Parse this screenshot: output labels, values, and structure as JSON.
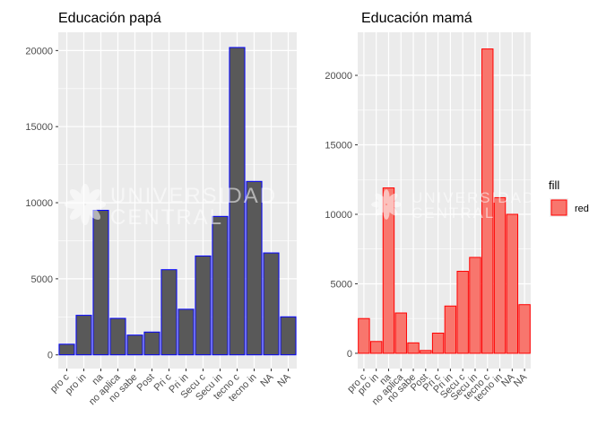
{
  "chart_data": [
    {
      "type": "bar",
      "title": "Educación papá",
      "categories": [
        "pro c",
        "pro in",
        "na",
        "no aplica",
        "no sabe",
        "Post",
        "Pri c",
        "Pri in",
        "Secu c",
        "Secu in",
        "tecno c",
        "tecno in",
        "NA",
        "NA"
      ],
      "values": [
        700,
        2600,
        9500,
        2400,
        1300,
        1500,
        5600,
        3000,
        6500,
        9100,
        20200,
        11400,
        6700,
        2500
      ],
      "ylim": [
        -900,
        21200
      ],
      "yticks": [
        0,
        5000,
        10000,
        15000,
        20000
      ],
      "yticklabels": [
        "0",
        "5000",
        "10000",
        "15000",
        "20000"
      ],
      "fill_color": "#595959",
      "stroke_color": "#0000ff",
      "panel_bg": "#ebebeb",
      "grid": true
    },
    {
      "type": "bar",
      "title": "Educación mamá",
      "categories": [
        "pro c",
        "pro in",
        "na",
        "no aplica",
        "no sabe",
        "Post",
        "Pri c",
        "Pri in",
        "Secu c",
        "Secu in",
        "tecno c",
        "tecno in",
        "NA",
        "NA"
      ],
      "values": [
        2500,
        850,
        11900,
        2900,
        750,
        200,
        1450,
        3400,
        5900,
        6900,
        21900,
        11200,
        10000,
        3500
      ],
      "ylim": [
        -1100,
        23100
      ],
      "yticks": [
        0,
        5000,
        10000,
        15000,
        20000
      ],
      "yticklabels": [
        "0",
        "5000",
        "10000",
        "15000",
        "20000"
      ],
      "fill_color": "#f8766d",
      "stroke_color": "#ff0000",
      "panel_bg": "#ebebeb",
      "grid": true
    }
  ],
  "legend": {
    "title": "fill",
    "items": [
      {
        "label": "red",
        "fill": "#f8766d",
        "stroke": "#ff0000"
      }
    ]
  },
  "watermark": {
    "line1": "UNIVERSIDAD",
    "line2": "CENTRAL"
  }
}
